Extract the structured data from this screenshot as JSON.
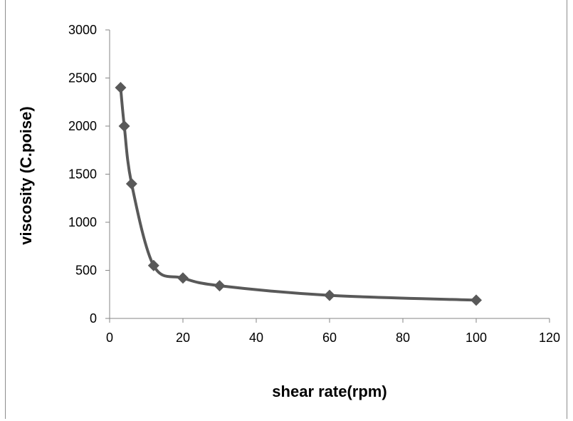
{
  "chart_data": {
    "type": "line",
    "title": "",
    "xlabel": "shear rate(rpm)",
    "ylabel": "viscosity (C.poise)",
    "xlim": [
      0,
      120
    ],
    "ylim": [
      0,
      3000
    ],
    "x_ticks": [
      0,
      20,
      40,
      60,
      80,
      100,
      120
    ],
    "y_ticks": [
      0,
      500,
      1000,
      1500,
      2000,
      2500,
      3000
    ],
    "grid": false,
    "legend": "none",
    "smooth": true,
    "series": [
      {
        "x": [
          3,
          4,
          6,
          12,
          20,
          30,
          60,
          100
        ],
        "y": [
          2400,
          2000,
          1400,
          550,
          420,
          340,
          240,
          190
        ],
        "marker": "diamond",
        "color": "#595959"
      }
    ]
  }
}
